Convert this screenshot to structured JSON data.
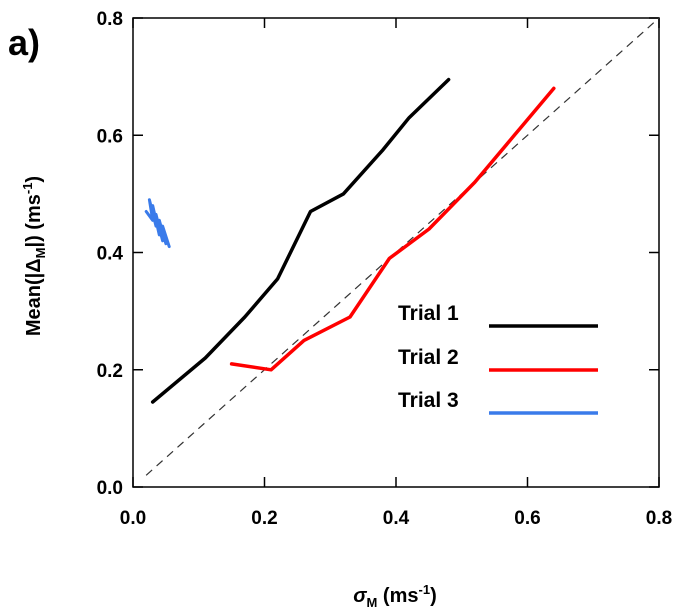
{
  "panel_label": "a)",
  "chart_data": {
    "type": "line",
    "xlabel": {
      "main": "σ",
      "sub": "M",
      "units": " (ms",
      "sup": "-1",
      "close": ")"
    },
    "ylabel": {
      "main": "Mean(|Δ",
      "sub": "M",
      "mid": "|) (ms",
      "sup": "-1",
      "close": ")"
    },
    "xlim": [
      0.0,
      0.8
    ],
    "ylim": [
      0.0,
      0.8
    ],
    "xticks": [
      "0.0",
      "0.2",
      "0.4",
      "0.6",
      "0.8"
    ],
    "yticks": [
      "0.0",
      "0.2",
      "0.4",
      "0.6",
      "0.8"
    ],
    "xtick_values": [
      0.0,
      0.2,
      0.4,
      0.6,
      0.8
    ],
    "ytick_values": [
      0.0,
      0.2,
      0.4,
      0.6,
      0.8
    ],
    "grid": false,
    "legend_position": "lower-right",
    "reference_line": {
      "style": "dashed",
      "color": "#333333",
      "x": [
        0.02,
        0.8
      ],
      "y": [
        0.02,
        0.8
      ]
    },
    "series": [
      {
        "name": "Trial 1",
        "color": "#000000",
        "x": [
          0.03,
          0.11,
          0.17,
          0.22,
          0.27,
          0.32,
          0.38,
          0.42,
          0.48
        ],
        "y": [
          0.145,
          0.22,
          0.29,
          0.355,
          0.47,
          0.5,
          0.575,
          0.63,
          0.695
        ]
      },
      {
        "name": "Trial 2",
        "color": "#ff0000",
        "x": [
          0.15,
          0.21,
          0.26,
          0.33,
          0.39,
          0.45,
          0.52,
          0.58,
          0.64
        ],
        "y": [
          0.21,
          0.2,
          0.25,
          0.29,
          0.39,
          0.44,
          0.52,
          0.6,
          0.68
        ]
      },
      {
        "name": "Trial 3",
        "color": "#3a7bea",
        "x": [
          0.02,
          0.03,
          0.025,
          0.035,
          0.03,
          0.04,
          0.035,
          0.045,
          0.04,
          0.05,
          0.045,
          0.055
        ],
        "y": [
          0.47,
          0.455,
          0.49,
          0.445,
          0.48,
          0.43,
          0.465,
          0.42,
          0.455,
          0.415,
          0.445,
          0.41
        ]
      }
    ]
  }
}
